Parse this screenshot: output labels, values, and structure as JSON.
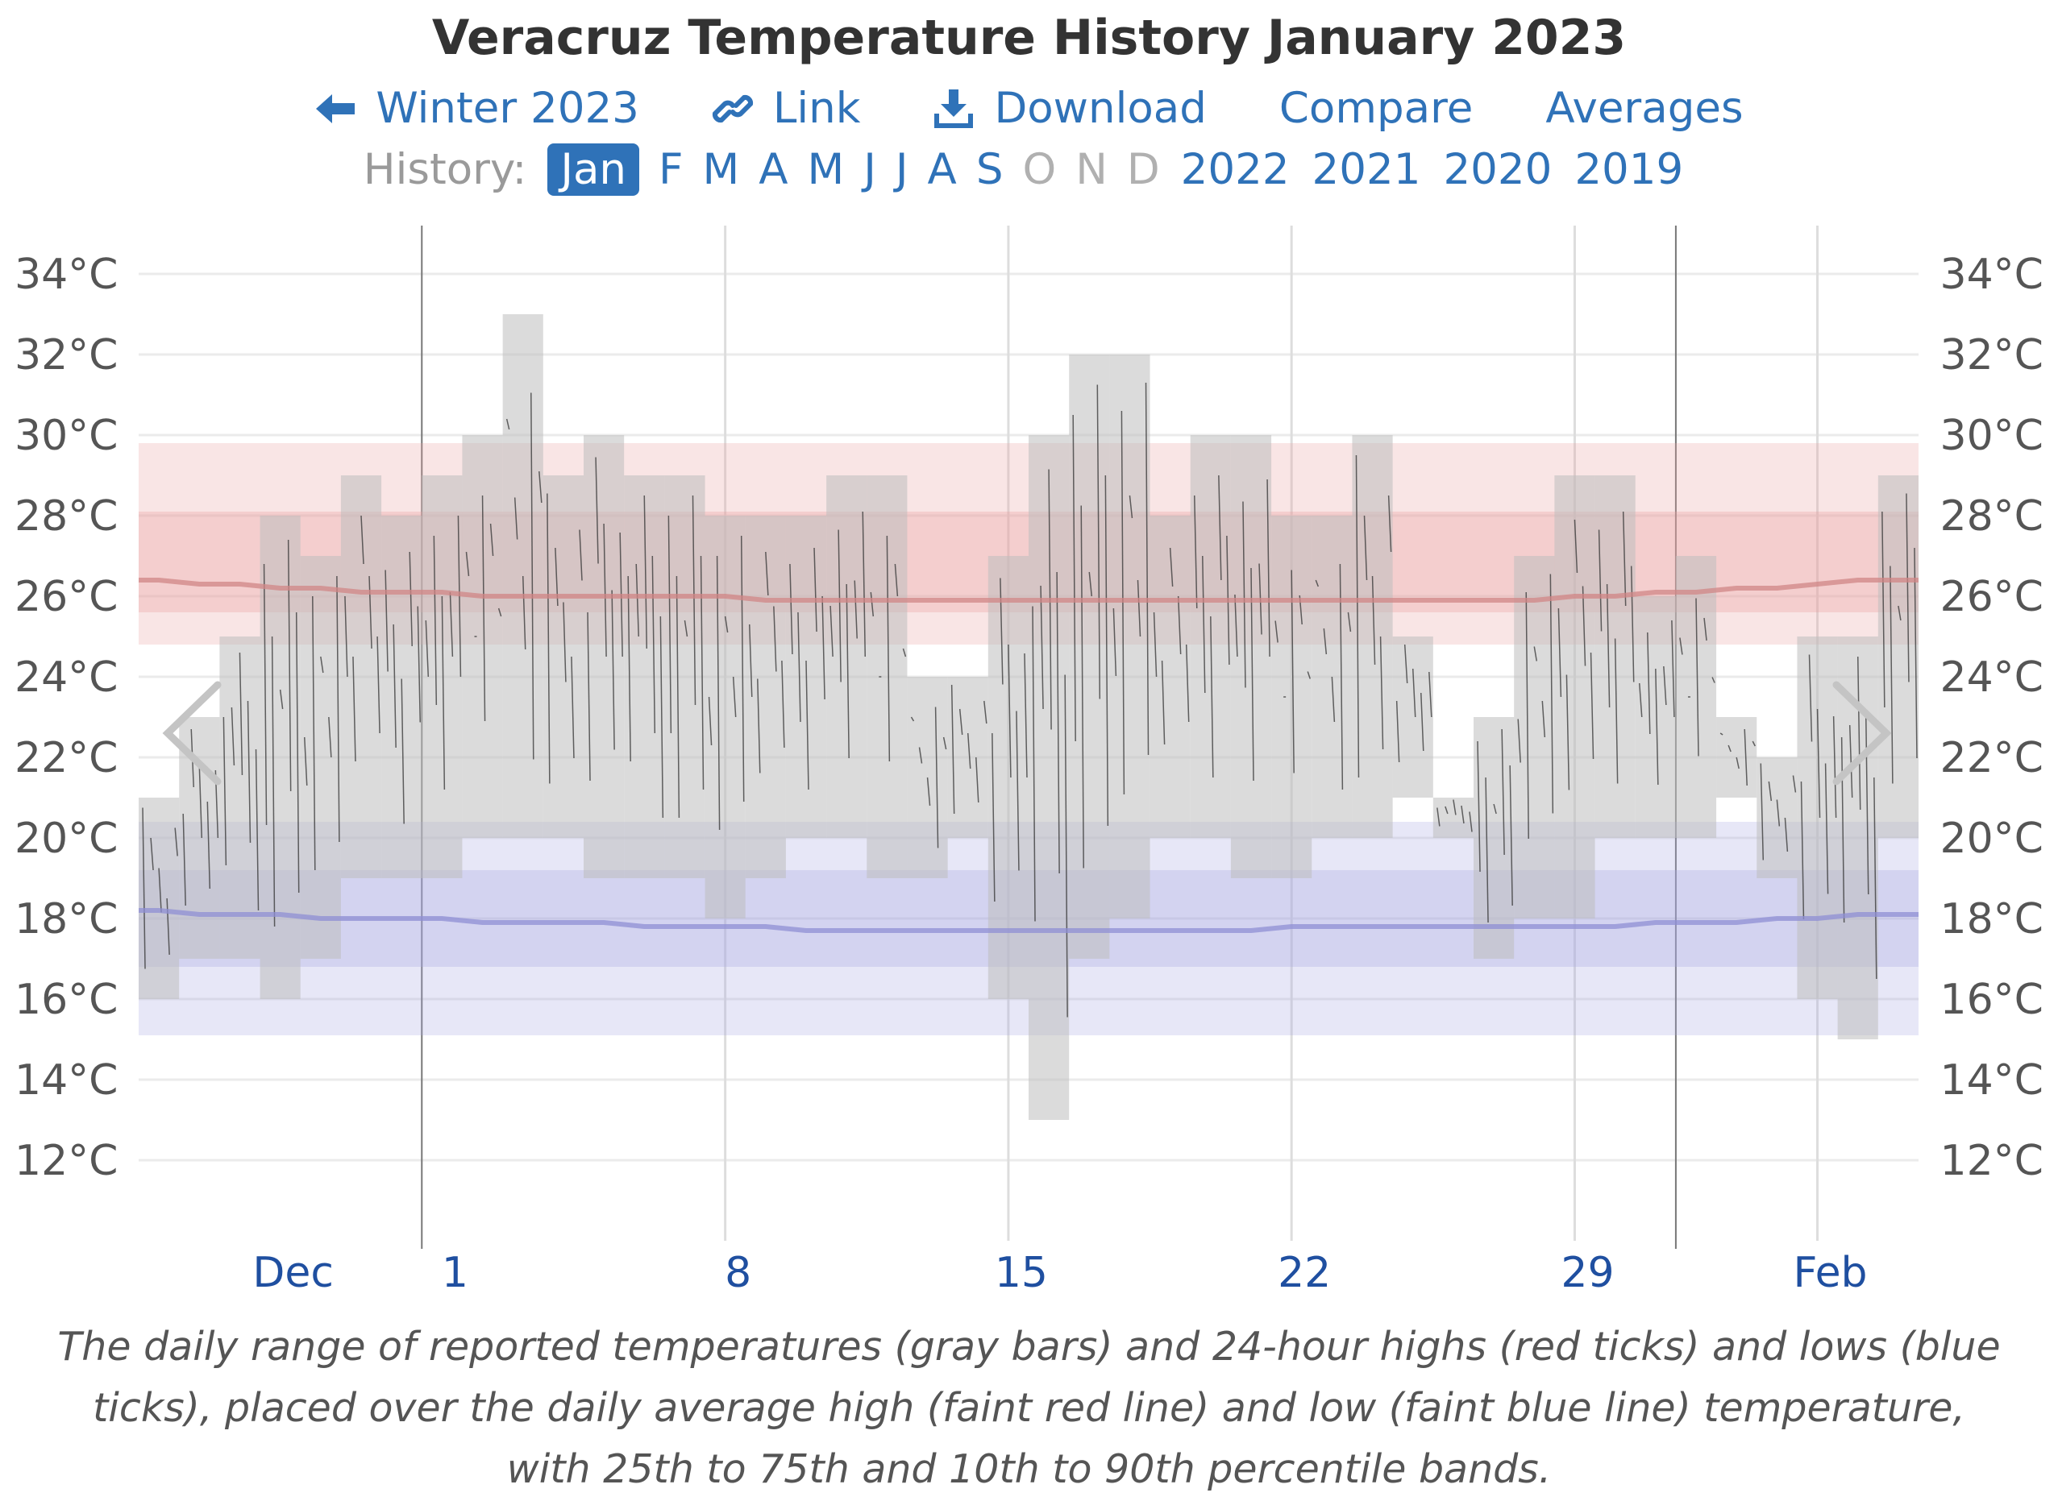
{
  "title": "Veracruz Temperature History January 2023",
  "nav": {
    "back_label": "Winter 2023",
    "link_label": "Link",
    "download_label": "Download",
    "compare_label": "Compare",
    "averages_label": "Averages"
  },
  "history": {
    "label": "History:",
    "months": [
      {
        "label": "Jan",
        "state": "active"
      },
      {
        "label": "F",
        "state": "link"
      },
      {
        "label": "M",
        "state": "link"
      },
      {
        "label": "A",
        "state": "link"
      },
      {
        "label": "M",
        "state": "link"
      },
      {
        "label": "J",
        "state": "link"
      },
      {
        "label": "J",
        "state": "link"
      },
      {
        "label": "A",
        "state": "link"
      },
      {
        "label": "S",
        "state": "link"
      },
      {
        "label": "O",
        "state": "disabled"
      },
      {
        "label": "N",
        "state": "disabled"
      },
      {
        "label": "D",
        "state": "disabled"
      }
    ],
    "years": [
      "2022",
      "2021",
      "2020",
      "2019"
    ]
  },
  "colors": {
    "link": "#2f72b8",
    "range_bar": "#bdbdbd",
    "high_band": "#e8a0a0",
    "high_line": "#d08585",
    "low_band": "#a8a8e4",
    "low_line": "#8f8fd4"
  },
  "chart_data": {
    "type": "bar",
    "ylim": [
      10,
      35
    ],
    "yticks": [
      12,
      14,
      16,
      18,
      20,
      22,
      24,
      26,
      28,
      30,
      32,
      34
    ],
    "y_tick_labels": [
      "12°C",
      "14°C",
      "16°C",
      "18°C",
      "20°C",
      "22°C",
      "24°C",
      "26°C",
      "28°C",
      "30°C",
      "32°C",
      "34°C"
    ],
    "xlim": [
      -6.5,
      37.5
    ],
    "x_tick_labels": [
      {
        "label": "Dec",
        "day": -3
      },
      {
        "label": "1",
        "day": 1
      },
      {
        "label": "8",
        "day": 8
      },
      {
        "label": "15",
        "day": 15
      },
      {
        "label": "22",
        "day": 22
      },
      {
        "label": "29",
        "day": 29
      },
      {
        "label": "Feb",
        "day": 35
      }
    ],
    "gridline_days": [
      8,
      15,
      22,
      29,
      35
    ],
    "month_boundary_days": [
      0.5,
      31.5
    ],
    "days": [
      -6,
      -5,
      -4,
      -3,
      -2,
      -1,
      0,
      1,
      2,
      3,
      4,
      5,
      6,
      7,
      8,
      9,
      10,
      11,
      12,
      13,
      14,
      15,
      16,
      17,
      18,
      19,
      20,
      21,
      22,
      23,
      24,
      25,
      26,
      27,
      28,
      29,
      30,
      31,
      32,
      33,
      34,
      35,
      36,
      37
    ],
    "series": [
      {
        "name": "Daily min",
        "values": [
          16,
          17,
          17,
          16,
          17,
          19,
          19,
          19,
          20,
          20,
          20,
          19,
          19,
          19,
          18,
          19,
          20,
          20,
          19,
          19,
          20,
          16,
          13,
          17,
          18,
          20,
          20,
          19,
          19,
          20,
          20,
          21,
          20,
          17,
          18,
          18,
          20,
          20,
          20,
          21,
          19,
          16,
          15,
          20
        ]
      },
      {
        "name": "Daily max",
        "values": [
          21,
          23,
          25,
          28,
          27,
          29,
          28,
          29,
          30,
          33,
          29,
          30,
          29,
          29,
          28,
          28,
          28,
          29,
          29,
          24,
          24,
          27,
          30,
          32,
          32,
          28,
          30,
          30,
          28,
          28,
          30,
          25,
          21,
          23,
          27,
          29,
          29,
          26,
          27,
          23,
          22,
          25,
          25,
          29
        ]
      },
      {
        "name": "Average high",
        "values": [
          26.4,
          26.3,
          26.3,
          26.2,
          26.2,
          26.1,
          26.1,
          26.1,
          26.0,
          26.0,
          26.0,
          26.0,
          26.0,
          26.0,
          26.0,
          25.9,
          25.9,
          25.9,
          25.9,
          25.9,
          25.9,
          25.9,
          25.9,
          25.9,
          25.9,
          25.9,
          25.9,
          25.9,
          25.9,
          25.9,
          25.9,
          25.9,
          25.9,
          25.9,
          25.9,
          26.0,
          26.0,
          26.1,
          26.1,
          26.2,
          26.2,
          26.3,
          26.4,
          26.4
        ]
      },
      {
        "name": "Average low",
        "values": [
          18.2,
          18.1,
          18.1,
          18.1,
          18.0,
          18.0,
          18.0,
          18.0,
          17.9,
          17.9,
          17.9,
          17.9,
          17.8,
          17.8,
          17.8,
          17.8,
          17.7,
          17.7,
          17.7,
          17.7,
          17.7,
          17.7,
          17.7,
          17.7,
          17.7,
          17.7,
          17.7,
          17.7,
          17.8,
          17.8,
          17.8,
          17.8,
          17.8,
          17.8,
          17.8,
          17.8,
          17.8,
          17.9,
          17.9,
          17.9,
          18.0,
          18.0,
          18.1,
          18.1
        ]
      }
    ],
    "high_band_10_90": [
      24.8,
      29.8
    ],
    "high_band_25_75": [
      25.6,
      28.1
    ],
    "low_band_10_90": [
      15.1,
      20.4
    ],
    "low_band_25_75": [
      16.8,
      19.2
    ],
    "caption": "The daily range of reported temperatures (gray bars) and 24-hour highs (red ticks) and lows (blue ticks), placed over the daily average high (faint red line) and low (faint blue line) temperature, with 25th to 75th and 10th to 90th percentile bands."
  }
}
